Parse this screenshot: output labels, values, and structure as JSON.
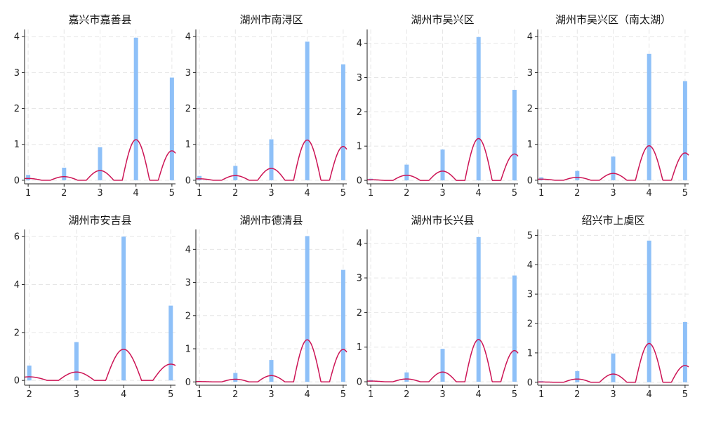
{
  "chart_data": [
    {
      "type": "bar",
      "title": "嘉兴市嘉善县",
      "categories": [
        1,
        2,
        3,
        4,
        5
      ],
      "bar_values": [
        0.15,
        0.35,
        0.92,
        3.97,
        2.86
      ],
      "curve_values": [
        0.05,
        0.1,
        0.27,
        1.13,
        0.82
      ],
      "xlim": [
        0.9,
        5.1
      ],
      "ylim": [
        -0.1,
        4.2
      ],
      "yticks": [
        0,
        1,
        2,
        3,
        4
      ]
    },
    {
      "type": "bar",
      "title": "湖州市南浔区",
      "categories": [
        1,
        2,
        3,
        4,
        5
      ],
      "bar_values": [
        0.12,
        0.4,
        1.14,
        3.86,
        3.23
      ],
      "curve_values": [
        0.04,
        0.13,
        0.33,
        1.12,
        0.94
      ],
      "xlim": [
        0.9,
        5.1
      ],
      "ylim": [
        -0.1,
        4.2
      ],
      "yticks": [
        0,
        1,
        2,
        3,
        4
      ]
    },
    {
      "type": "bar",
      "title": "湖州市吴兴区",
      "categories": [
        1,
        2,
        3,
        4,
        5
      ],
      "bar_values": [
        0.05,
        0.46,
        0.9,
        4.18,
        2.64
      ],
      "curve_values": [
        0.02,
        0.15,
        0.27,
        1.22,
        0.77
      ],
      "xlim": [
        0.9,
        5.1
      ],
      "ylim": [
        -0.1,
        4.4
      ],
      "yticks": [
        0,
        1,
        2,
        3,
        4
      ]
    },
    {
      "type": "bar",
      "title": "湖州市吴兴区（南太湖）",
      "categories": [
        1,
        2,
        3,
        4,
        5
      ],
      "bar_values": [
        0.08,
        0.26,
        0.66,
        3.52,
        2.76
      ],
      "curve_values": [
        0.03,
        0.08,
        0.19,
        0.96,
        0.76
      ],
      "xlim": [
        0.9,
        5.1
      ],
      "ylim": [
        -0.1,
        4.2
      ],
      "yticks": [
        0,
        1,
        2,
        3,
        4
      ]
    },
    {
      "type": "bar",
      "title": "湖州市安吉县",
      "categories": [
        2,
        3,
        4,
        5
      ],
      "bar_values": [
        0.62,
        1.6,
        6.0,
        3.12
      ],
      "curve_values": [
        0.15,
        0.35,
        1.3,
        0.68
      ],
      "xlim": [
        1.9,
        5.1
      ],
      "ylim": [
        -0.2,
        6.3
      ],
      "yticks": [
        0,
        2,
        4,
        6
      ]
    },
    {
      "type": "bar",
      "title": "湖州市德清县",
      "categories": [
        1,
        2,
        3,
        4,
        5
      ],
      "bar_values": [
        0.03,
        0.27,
        0.66,
        4.4,
        3.38
      ],
      "curve_values": [
        0.01,
        0.08,
        0.19,
        1.27,
        0.98
      ],
      "xlim": [
        0.9,
        5.1
      ],
      "ylim": [
        -0.1,
        4.6
      ],
      "yticks": [
        0,
        1,
        2,
        3,
        4
      ]
    },
    {
      "type": "bar",
      "title": "湖州市长兴县",
      "categories": [
        1,
        2,
        3,
        4,
        5
      ],
      "bar_values": [
        0.05,
        0.27,
        0.95,
        4.18,
        3.07
      ],
      "curve_values": [
        0.02,
        0.08,
        0.28,
        1.22,
        0.9
      ],
      "xlim": [
        0.9,
        5.1
      ],
      "ylim": [
        -0.1,
        4.4
      ],
      "yticks": [
        0,
        1,
        2,
        3,
        4
      ]
    },
    {
      "type": "bar",
      "title": "绍兴市上虞区",
      "categories": [
        1,
        2,
        3,
        4,
        5
      ],
      "bar_values": [
        0.04,
        0.38,
        0.98,
        4.82,
        2.05
      ],
      "curve_values": [
        0.01,
        0.11,
        0.28,
        1.32,
        0.57
      ],
      "xlim": [
        0.9,
        5.1
      ],
      "ylim": [
        -0.1,
        5.2
      ],
      "yticks": [
        0,
        1,
        2,
        3,
        4,
        5
      ]
    }
  ]
}
